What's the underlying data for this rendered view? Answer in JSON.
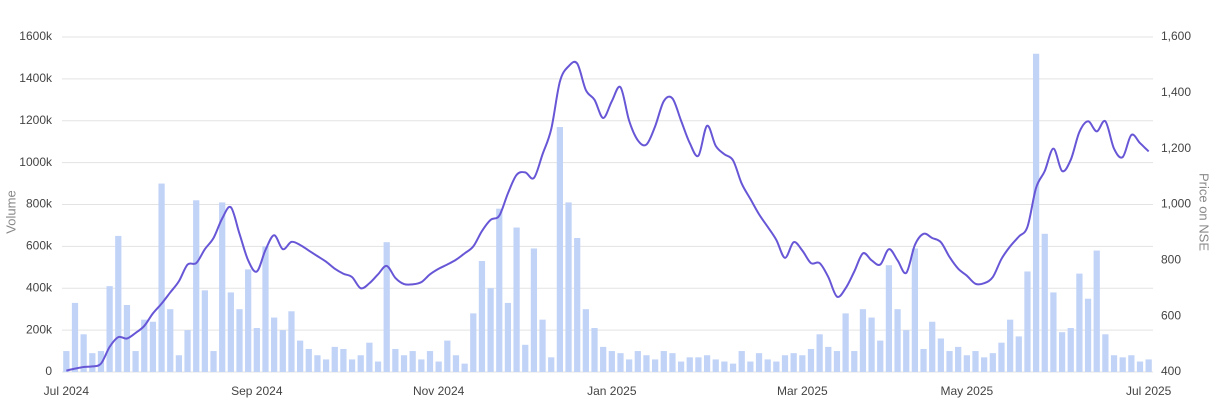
{
  "chart_data": {
    "type": "bar-line",
    "ylabel": "Volume",
    "y2label": "Price on NSE",
    "categories": [
      "Jul 2024",
      null,
      null,
      null,
      null,
      null,
      null,
      null,
      null,
      null,
      null,
      null,
      null,
      null,
      null,
      null,
      null,
      null,
      null,
      null,
      null,
      null,
      "Sep 2024",
      null,
      null,
      null,
      null,
      null,
      null,
      null,
      null,
      null,
      null,
      null,
      null,
      null,
      null,
      null,
      null,
      null,
      null,
      null,
      null,
      "Nov 2024",
      null,
      null,
      null,
      null,
      null,
      null,
      null,
      null,
      null,
      null,
      null,
      null,
      null,
      null,
      null,
      null,
      null,
      null,
      null,
      "Jan 2025",
      null,
      null,
      null,
      null,
      null,
      null,
      null,
      null,
      null,
      null,
      null,
      null,
      null,
      null,
      null,
      null,
      null,
      null,
      null,
      null,
      null,
      "Mar 2025",
      null,
      null,
      null,
      null,
      null,
      null,
      null,
      null,
      null,
      null,
      null,
      null,
      null,
      null,
      null,
      null,
      null,
      null,
      "May 2025",
      null,
      null,
      null,
      null,
      null,
      null,
      null,
      null,
      null,
      null,
      null,
      null,
      null,
      null,
      null,
      null,
      null,
      null,
      null,
      null,
      "Jul 2025"
    ],
    "series": [
      {
        "type": "bar",
        "color": "#c1d3f7",
        "values": [
          100000,
          330000,
          180000,
          90000,
          100000,
          410000,
          650000,
          320000,
          100000,
          250000,
          240000,
          900000,
          300000,
          80000,
          200000,
          820000,
          390000,
          100000,
          810000,
          380000,
          300000,
          490000,
          210000,
          600000,
          260000,
          200000,
          290000,
          150000,
          110000,
          80000,
          60000,
          120000,
          110000,
          60000,
          80000,
          140000,
          50000,
          620000,
          110000,
          80000,
          100000,
          60000,
          100000,
          50000,
          150000,
          80000,
          40000,
          280000,
          530000,
          400000,
          780000,
          330000,
          690000,
          130000,
          590000,
          250000,
          70000,
          1170000,
          810000,
          640000,
          300000,
          210000,
          120000,
          100000,
          90000,
          60000,
          100000,
          80000,
          60000,
          100000,
          90000,
          50000,
          70000,
          70000,
          80000,
          60000,
          50000,
          40000,
          100000,
          50000,
          90000,
          60000,
          50000,
          80000,
          90000,
          80000,
          110000,
          180000,
          120000,
          100000,
          280000,
          100000,
          300000,
          260000,
          150000,
          510000,
          300000,
          200000,
          590000,
          110000,
          240000,
          160000,
          100000,
          120000,
          80000,
          100000,
          70000,
          90000,
          140000,
          250000,
          170000,
          480000,
          1520000,
          660000,
          380000,
          190000,
          210000,
          470000,
          350000,
          580000,
          180000,
          80000,
          70000,
          80000,
          50000,
          60000
        ]
      },
      {
        "type": "line",
        "axis": "y2",
        "color": "#6757d6",
        "values": [
          405,
          412,
          418,
          420,
          430,
          490,
          525,
          520,
          540,
          565,
          610,
          645,
          685,
          725,
          785,
          790,
          840,
          880,
          950,
          990,
          895,
          800,
          760,
          837,
          890,
          840,
          866,
          855,
          835,
          815,
          795,
          770,
          752,
          740,
          700,
          718,
          750,
          780,
          737,
          715,
          714,
          722,
          750,
          770,
          785,
          802,
          825,
          850,
          905,
          945,
          960,
          1040,
          1106,
          1115,
          1095,
          1180,
          1270,
          1440,
          1495,
          1505,
          1410,
          1375,
          1310,
          1370,
          1420,
          1300,
          1230,
          1215,
          1280,
          1370,
          1380,
          1300,
          1220,
          1175,
          1282,
          1210,
          1180,
          1158,
          1075,
          1020,
          965,
          920,
          873,
          809,
          865,
          835,
          790,
          790,
          740,
          670,
          700,
          760,
          825,
          800,
          785,
          840,
          800,
          755,
          855,
          895,
          880,
          865,
          812,
          770,
          745,
          716,
          718,
          740,
          805,
          850,
          885,
          920,
          1060,
          1120,
          1200,
          1120,
          1160,
          1260,
          1298,
          1262,
          1298,
          1200,
          1170,
          1249,
          1220,
          1190
        ]
      }
    ],
    "ylim": [
      0,
      1600000
    ],
    "yticks": [
      0,
      {
        "value": 200000,
        "label": "200k"
      },
      {
        "value": 400000,
        "label": "400k"
      },
      {
        "value": 600000,
        "label": "600k"
      },
      {
        "value": 800000,
        "label": "800k"
      },
      {
        "value": 1000000,
        "label": "1000k"
      },
      {
        "value": 1200000,
        "label": "1200k"
      },
      {
        "value": 1400000,
        "label": "1400k"
      },
      {
        "value": 1600000,
        "label": "1600k"
      }
    ],
    "y2lim": [
      400,
      1600
    ],
    "y2ticks": [
      400,
      600,
      800,
      {
        "value": 1000,
        "label": "1,000"
      },
      {
        "value": 1200,
        "label": "1,200"
      },
      {
        "value": 1400,
        "label": "1,400"
      },
      {
        "value": 1600,
        "label": "1,600"
      }
    ],
    "grid": true
  }
}
